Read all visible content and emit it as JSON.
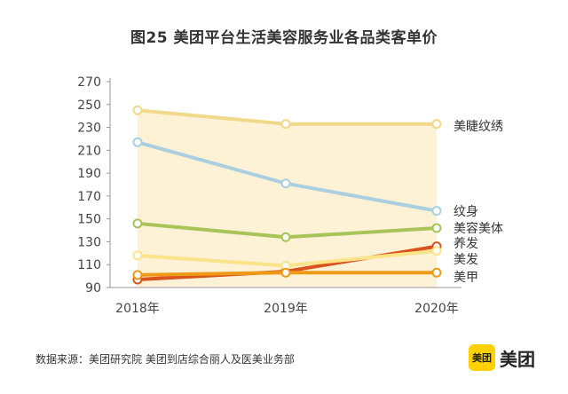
{
  "title": "图25  美团平台生活美容服务业各品类客单价",
  "source": "数据来源：美团研究院  美团到店综合丽人及医美业务部",
  "logo": {
    "badge": "美团",
    "text": "美团"
  },
  "chart_data": {
    "type": "line",
    "categories": [
      "2018年",
      "2019年",
      "2020年"
    ],
    "ylim": [
      90,
      270
    ],
    "yticks": [
      90,
      110,
      130,
      150,
      170,
      190,
      210,
      230,
      250,
      270
    ],
    "grid": false,
    "series": [
      {
        "name": "美睫纹绣",
        "values": [
          245,
          233,
          233
        ],
        "color": "#f2d98a"
      },
      {
        "name": "纹身",
        "values": [
          217,
          181,
          157
        ],
        "color": "#a9cfe0"
      },
      {
        "name": "美容美体",
        "values": [
          146,
          134,
          142
        ],
        "color": "#a6c457"
      },
      {
        "name": "养发",
        "values": [
          97,
          104,
          126
        ],
        "color": "#d9531c"
      },
      {
        "name": "美发",
        "values": [
          118,
          109,
          122
        ],
        "color": "#fbe38a"
      },
      {
        "name": "美甲",
        "values": [
          101,
          103,
          103
        ],
        "color": "#ee9a18"
      }
    ]
  }
}
